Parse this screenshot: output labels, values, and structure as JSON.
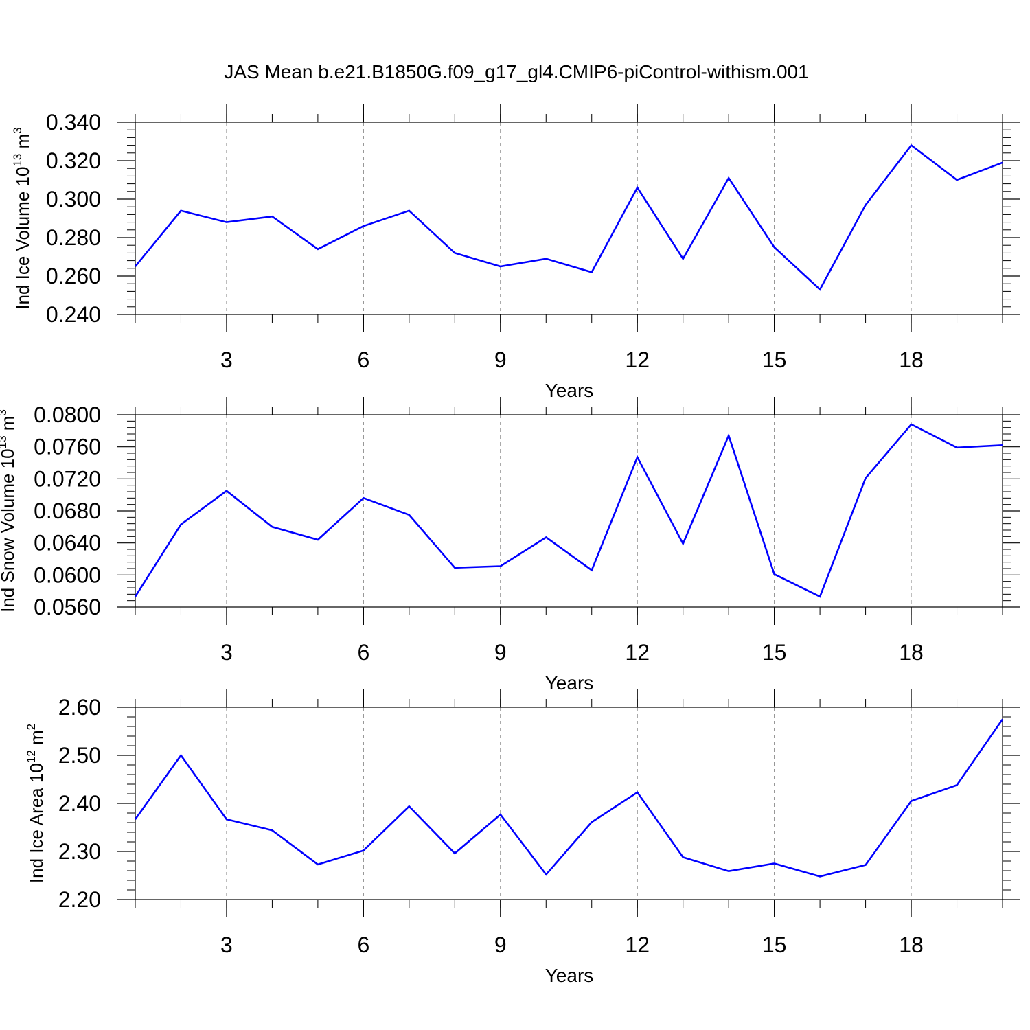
{
  "title": "JAS Mean b.e21.B1850G.f09_g17_gl4.CMIP6-piControl-withism.001",
  "line_color": "#0000ff",
  "chart_data": [
    {
      "type": "line",
      "ylabel": "Ind Ice Volume 10",
      "ylabel_exp": "13",
      "ylabel_unit": " m",
      "ylabel_unit_exp": "3",
      "xlabel": "Years",
      "xlim": [
        1,
        20
      ],
      "ylim": [
        0.24,
        0.34
      ],
      "yticks": [
        0.24,
        0.26,
        0.28,
        0.3,
        0.32,
        0.34
      ],
      "ytick_labels": [
        "0.240",
        "0.260",
        "0.280",
        "0.300",
        "0.320",
        "0.340"
      ],
      "xticks": [
        3,
        6,
        9,
        12,
        15,
        18
      ],
      "xtick_labels": [
        "3",
        "6",
        "9",
        "12",
        "15",
        "18"
      ],
      "x": [
        1,
        2,
        3,
        4,
        5,
        6,
        7,
        8,
        9,
        10,
        11,
        12,
        13,
        14,
        15,
        16,
        17,
        18,
        19,
        20
      ],
      "values": [
        0.265,
        0.294,
        0.288,
        0.291,
        0.274,
        0.286,
        0.294,
        0.272,
        0.265,
        0.269,
        0.262,
        0.306,
        0.269,
        0.311,
        0.275,
        0.253,
        0.297,
        0.328,
        0.31,
        0.319
      ]
    },
    {
      "type": "line",
      "ylabel": "Ind Snow Volume 10",
      "ylabel_exp": "13",
      "ylabel_unit": " m",
      "ylabel_unit_exp": "3",
      "xlabel": "Years",
      "xlim": [
        1,
        20
      ],
      "ylim": [
        0.056,
        0.08
      ],
      "yticks": [
        0.056,
        0.06,
        0.064,
        0.068,
        0.072,
        0.076,
        0.08
      ],
      "ytick_labels": [
        "0.0560",
        "0.0600",
        "0.0640",
        "0.0680",
        "0.0720",
        "0.0760",
        "0.0800"
      ],
      "xticks": [
        3,
        6,
        9,
        12,
        15,
        18
      ],
      "xtick_labels": [
        "3",
        "6",
        "9",
        "12",
        "15",
        "18"
      ],
      "x": [
        1,
        2,
        3,
        4,
        5,
        6,
        7,
        8,
        9,
        10,
        11,
        12,
        13,
        14,
        15,
        16,
        17,
        18,
        19,
        20
      ],
      "values": [
        0.0573,
        0.0663,
        0.0705,
        0.066,
        0.0644,
        0.0696,
        0.0675,
        0.0609,
        0.0611,
        0.0647,
        0.0606,
        0.0747,
        0.0639,
        0.0774,
        0.0601,
        0.0573,
        0.0721,
        0.0788,
        0.0759,
        0.0762
      ]
    },
    {
      "type": "line",
      "ylabel": "Ind Ice Area 10",
      "ylabel_exp": "12",
      "ylabel_unit": " m",
      "ylabel_unit_exp": "2",
      "xlabel": "Years",
      "xlim": [
        1,
        20
      ],
      "ylim": [
        2.2,
        2.6
      ],
      "yticks": [
        2.2,
        2.3,
        2.4,
        2.5,
        2.6
      ],
      "ytick_labels": [
        "2.20",
        "2.30",
        "2.40",
        "2.50",
        "2.60"
      ],
      "xticks": [
        3,
        6,
        9,
        12,
        15,
        18
      ],
      "xtick_labels": [
        "3",
        "6",
        "9",
        "12",
        "15",
        "18"
      ],
      "x": [
        1,
        2,
        3,
        4,
        5,
        6,
        7,
        8,
        9,
        10,
        11,
        12,
        13,
        14,
        15,
        16,
        17,
        18,
        19,
        20
      ],
      "values": [
        2.367,
        2.5,
        2.367,
        2.344,
        2.273,
        2.302,
        2.394,
        2.296,
        2.377,
        2.252,
        2.361,
        2.423,
        2.288,
        2.259,
        2.275,
        2.248,
        2.272,
        2.405,
        2.438,
        2.575
      ]
    }
  ]
}
